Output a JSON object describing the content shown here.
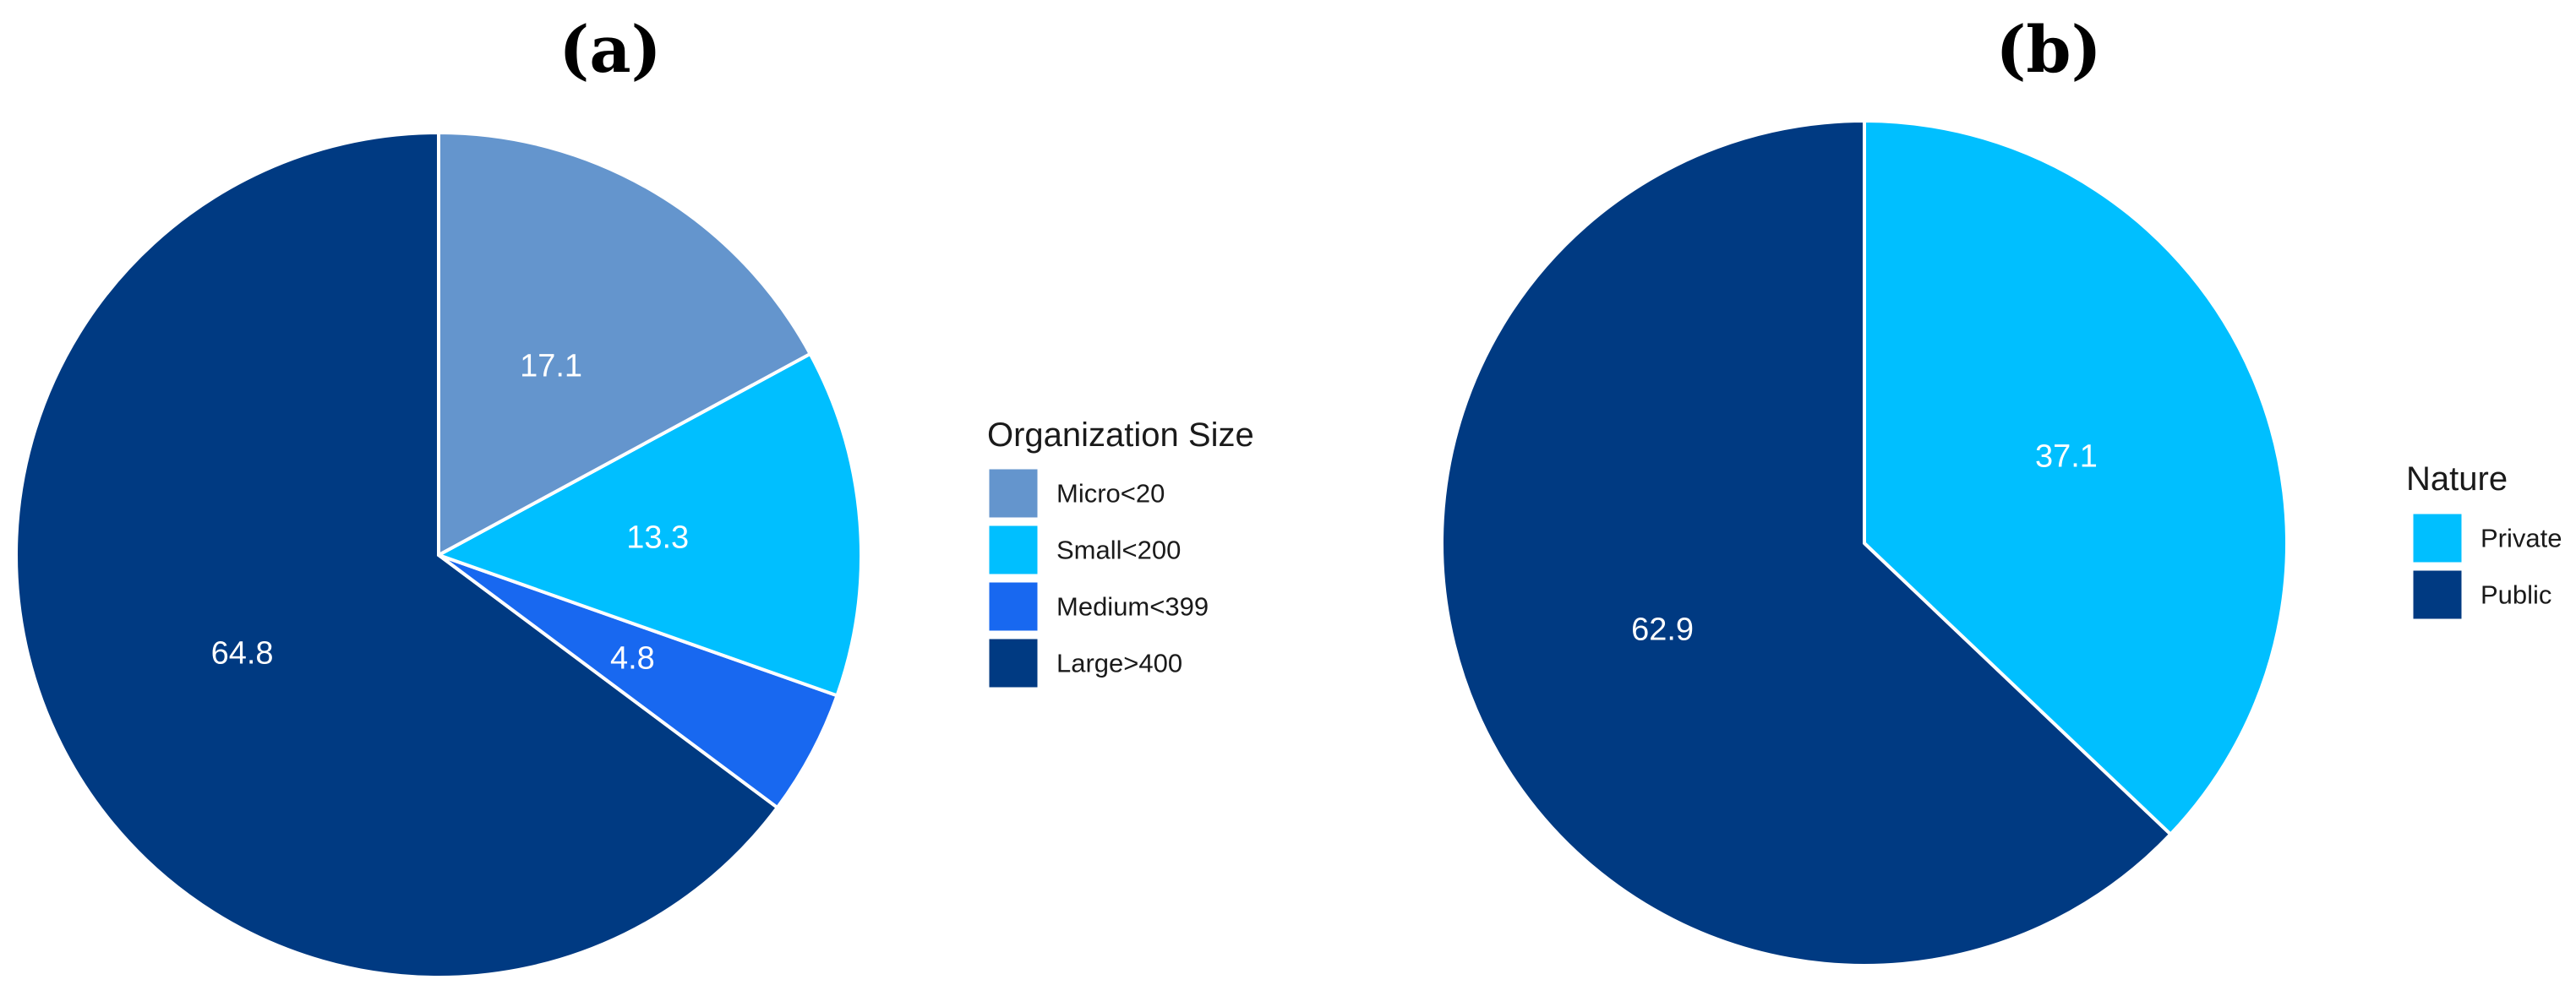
{
  "chart_data": [
    {
      "type": "pie",
      "panel": "(a)",
      "legend_title": "Organization Size",
      "legend_position": "right",
      "slices": [
        {
          "label": "Micro<20",
          "value": 17.1,
          "color": "#6495CD"
        },
        {
          "label": "Small<200",
          "value": 13.3,
          "color": "#00BFFF"
        },
        {
          "label": "Medium<399",
          "value": 4.8,
          "color": "#1868F0"
        },
        {
          "label": "Large>400",
          "value": 64.8,
          "color": "#003A82"
        }
      ]
    },
    {
      "type": "pie",
      "panel": "(b)",
      "legend_title": "Nature",
      "legend_position": "right",
      "slices": [
        {
          "label": "Private",
          "value": 37.1,
          "color": "#00BFFF"
        },
        {
          "label": "Public",
          "value": 62.9,
          "color": "#003A82"
        }
      ]
    }
  ]
}
